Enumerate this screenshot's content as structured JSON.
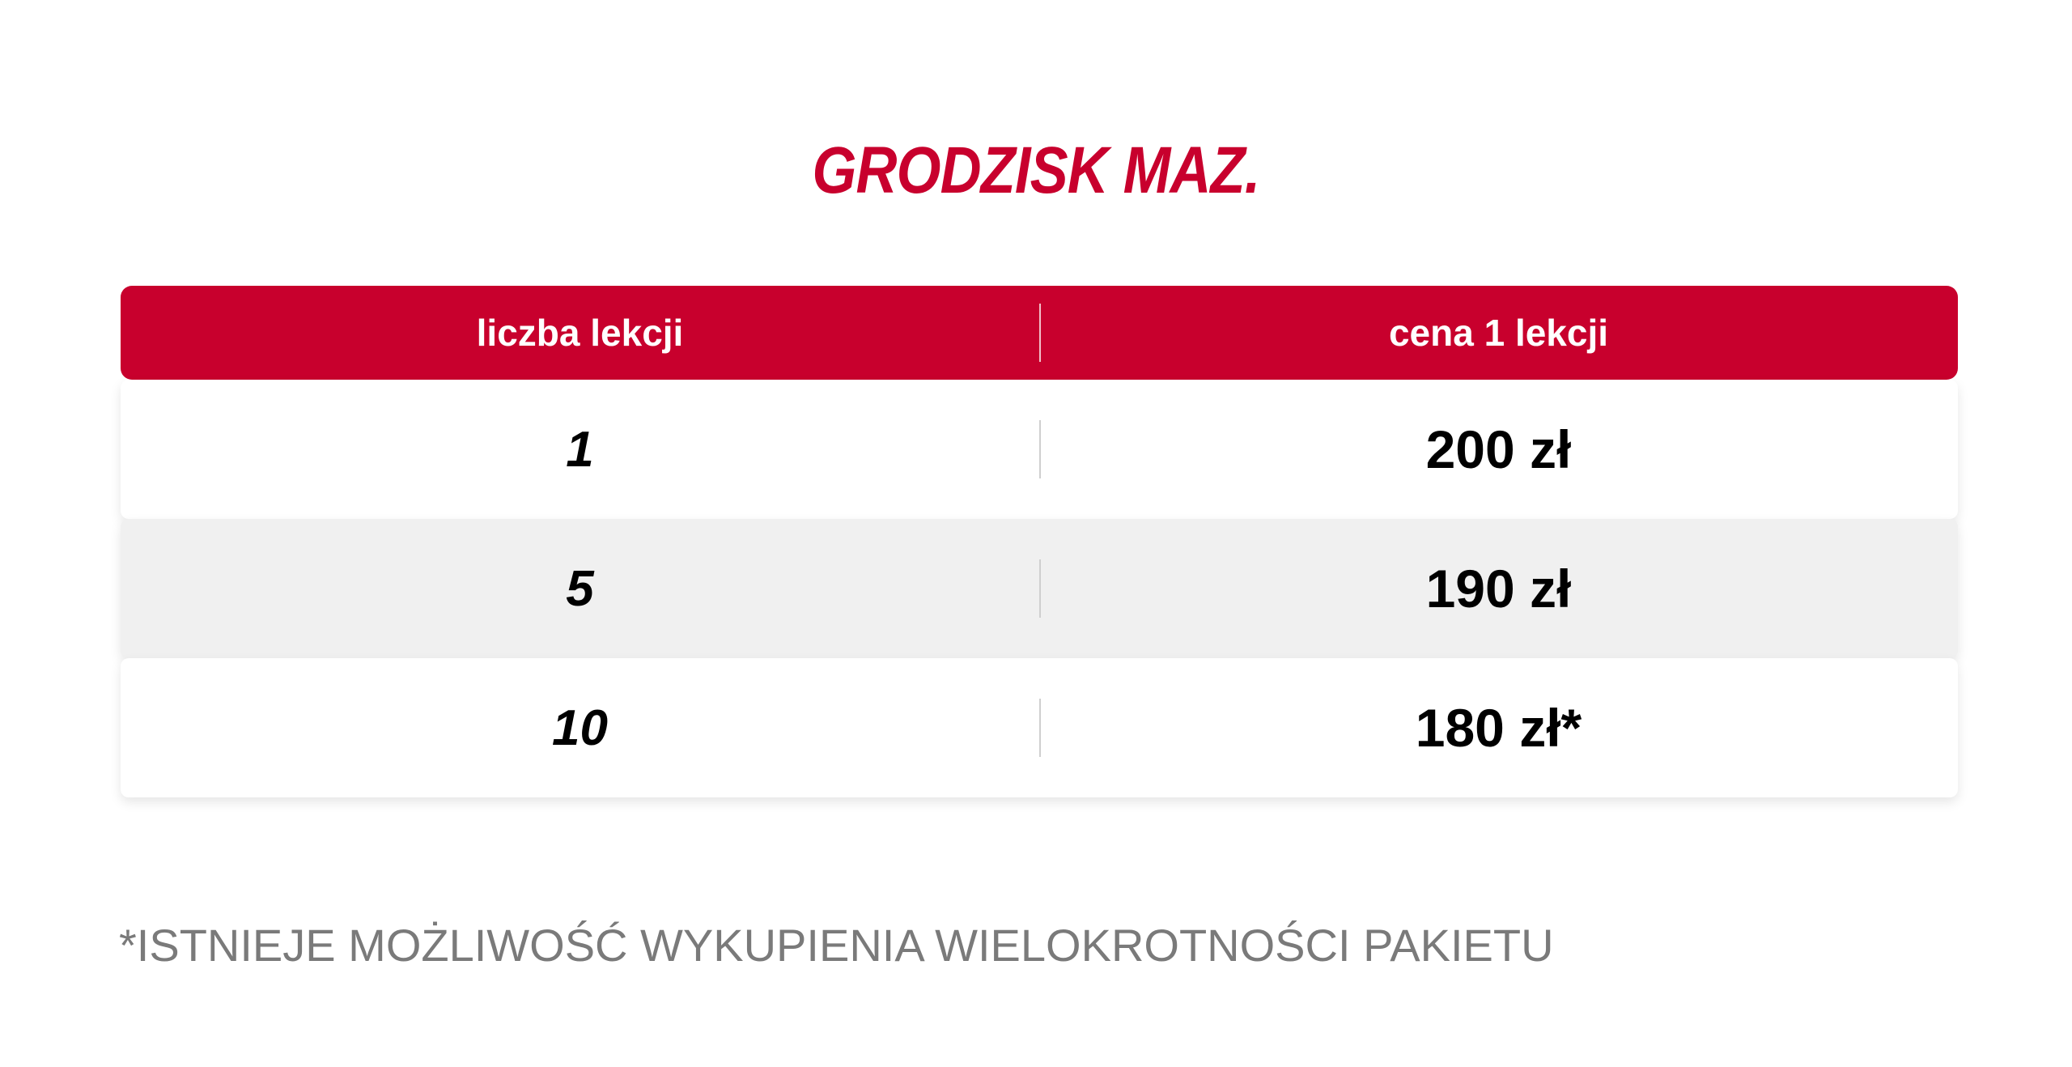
{
  "title": "GRODZISK MAZ.",
  "table": {
    "headers": [
      "liczba lekcji",
      "cena 1 lekcji"
    ],
    "rows": [
      {
        "count": "1",
        "price": "200 zł"
      },
      {
        "count": "5",
        "price": "190 zł"
      },
      {
        "count": "10",
        "price": "180 zł*"
      }
    ]
  },
  "footnote": "*ISTNIEJE MOŻLIWOŚĆ WYKUPIENIA WIELOKROTNOŚCI PAKIETU",
  "colors": {
    "accent": "#c8002d",
    "row_alt": "#f0f0f0",
    "footnote": "#7a7a7a"
  }
}
